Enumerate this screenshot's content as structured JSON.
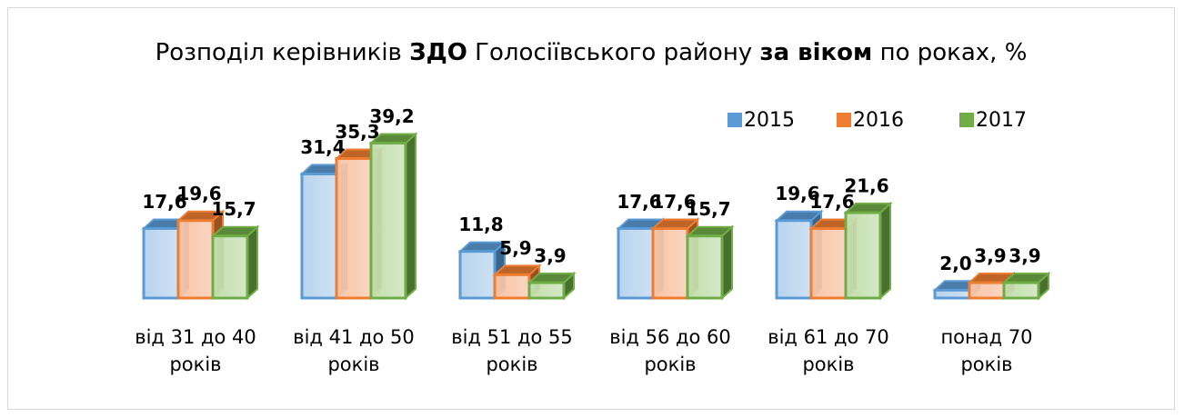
{
  "chart_data": {
    "type": "bar3d",
    "title": [
      {
        "text": "Розподіл керівників ",
        "bold": false
      },
      {
        "text": "ЗДО",
        "bold": true
      },
      {
        "text": " Голосіївського району ",
        "bold": false
      },
      {
        "text": "за віком",
        "bold": true
      },
      {
        "text": " по роках, %",
        "bold": false
      }
    ],
    "categories": [
      "від 31 до 40 років",
      "від 41 до 50 років",
      "від 51 до 55 років",
      "від 56 до 60 років",
      "від 61 до 70 років",
      "понад 70 років"
    ],
    "series": [
      {
        "name": "2015",
        "color": "#5b9bd5",
        "values": [
          17.6,
          31.4,
          11.8,
          17.6,
          19.6,
          2.0
        ],
        "value_labels": [
          "17,6",
          "31,4",
          "11,8",
          "17,6",
          "19,6",
          "2,0"
        ]
      },
      {
        "name": "2016",
        "color": "#ed7d31",
        "values": [
          19.6,
          35.3,
          5.9,
          17.6,
          17.6,
          3.9
        ],
        "value_labels": [
          "19,6",
          "35,3",
          "5,9",
          "17,6",
          "17,6",
          "3,9"
        ]
      },
      {
        "name": "2017",
        "color": "#70ad47",
        "values": [
          15.7,
          39.2,
          3.9,
          15.7,
          21.6,
          3.9
        ],
        "value_labels": [
          "15,7",
          "39,2",
          "3,9",
          "15,7",
          "21,6",
          "3,9"
        ]
      }
    ],
    "ylim": [
      0,
      40
    ],
    "legend": "top-right"
  }
}
